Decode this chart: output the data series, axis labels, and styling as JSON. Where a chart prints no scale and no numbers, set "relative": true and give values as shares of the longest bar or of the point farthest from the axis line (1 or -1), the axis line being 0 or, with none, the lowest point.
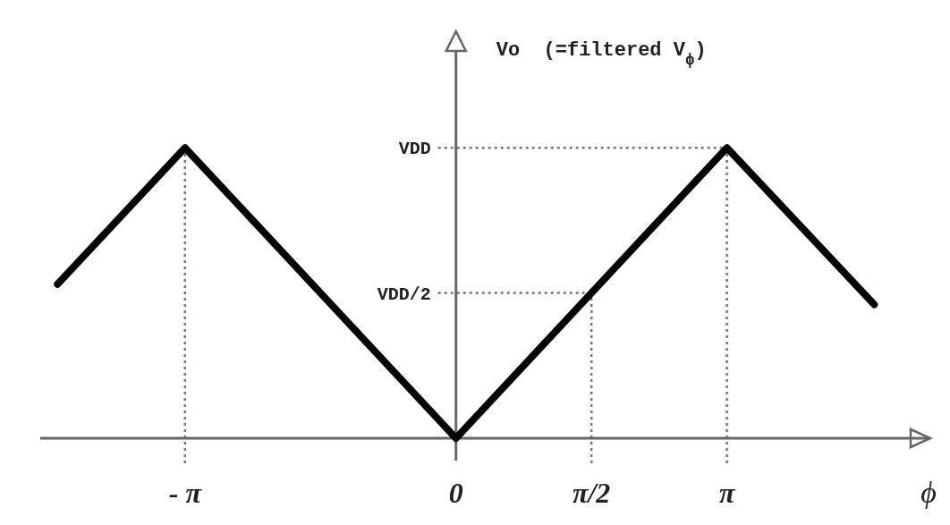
{
  "chart_data": {
    "type": "line",
    "relative": true,
    "xlabel": "ϕ",
    "ylabel": "Vo  (=filtered V$_{ϕ}$)",
    "x": [
      -4.62,
      -3.1416,
      0,
      3.1416,
      4.85
    ],
    "series": [
      {
        "color": "#000000",
        "values": [
          0.53,
          1,
          0,
          1,
          0.46
        ]
      }
    ],
    "xlim": [
      -4.82,
      5.5
    ],
    "xticks": [
      {
        "value": -3.1416,
        "label": "- π"
      },
      {
        "value": 0,
        "label": "0"
      },
      {
        "value": 1.5708,
        "label": "π/2"
      },
      {
        "value": 3.1416,
        "label": "π"
      }
    ],
    "ref_lines": [
      {
        "axis": "x",
        "value": -3.1416,
        "line_style": "dotted",
        "color": "#777777"
      },
      {
        "axis": "x",
        "value": 1.5708,
        "line_style": "dotted",
        "color": "#777777"
      },
      {
        "axis": "x",
        "value": 3.1416,
        "line_style": "dotted",
        "color": "#777777"
      },
      {
        "axis": "y",
        "value": 1,
        "label": "VDD",
        "line_style": "dotted",
        "color": "#777777"
      },
      {
        "axis": "y",
        "value": 0.5,
        "label": "VDD/2",
        "line_style": "dotted",
        "color": "#777777"
      }
    ]
  }
}
